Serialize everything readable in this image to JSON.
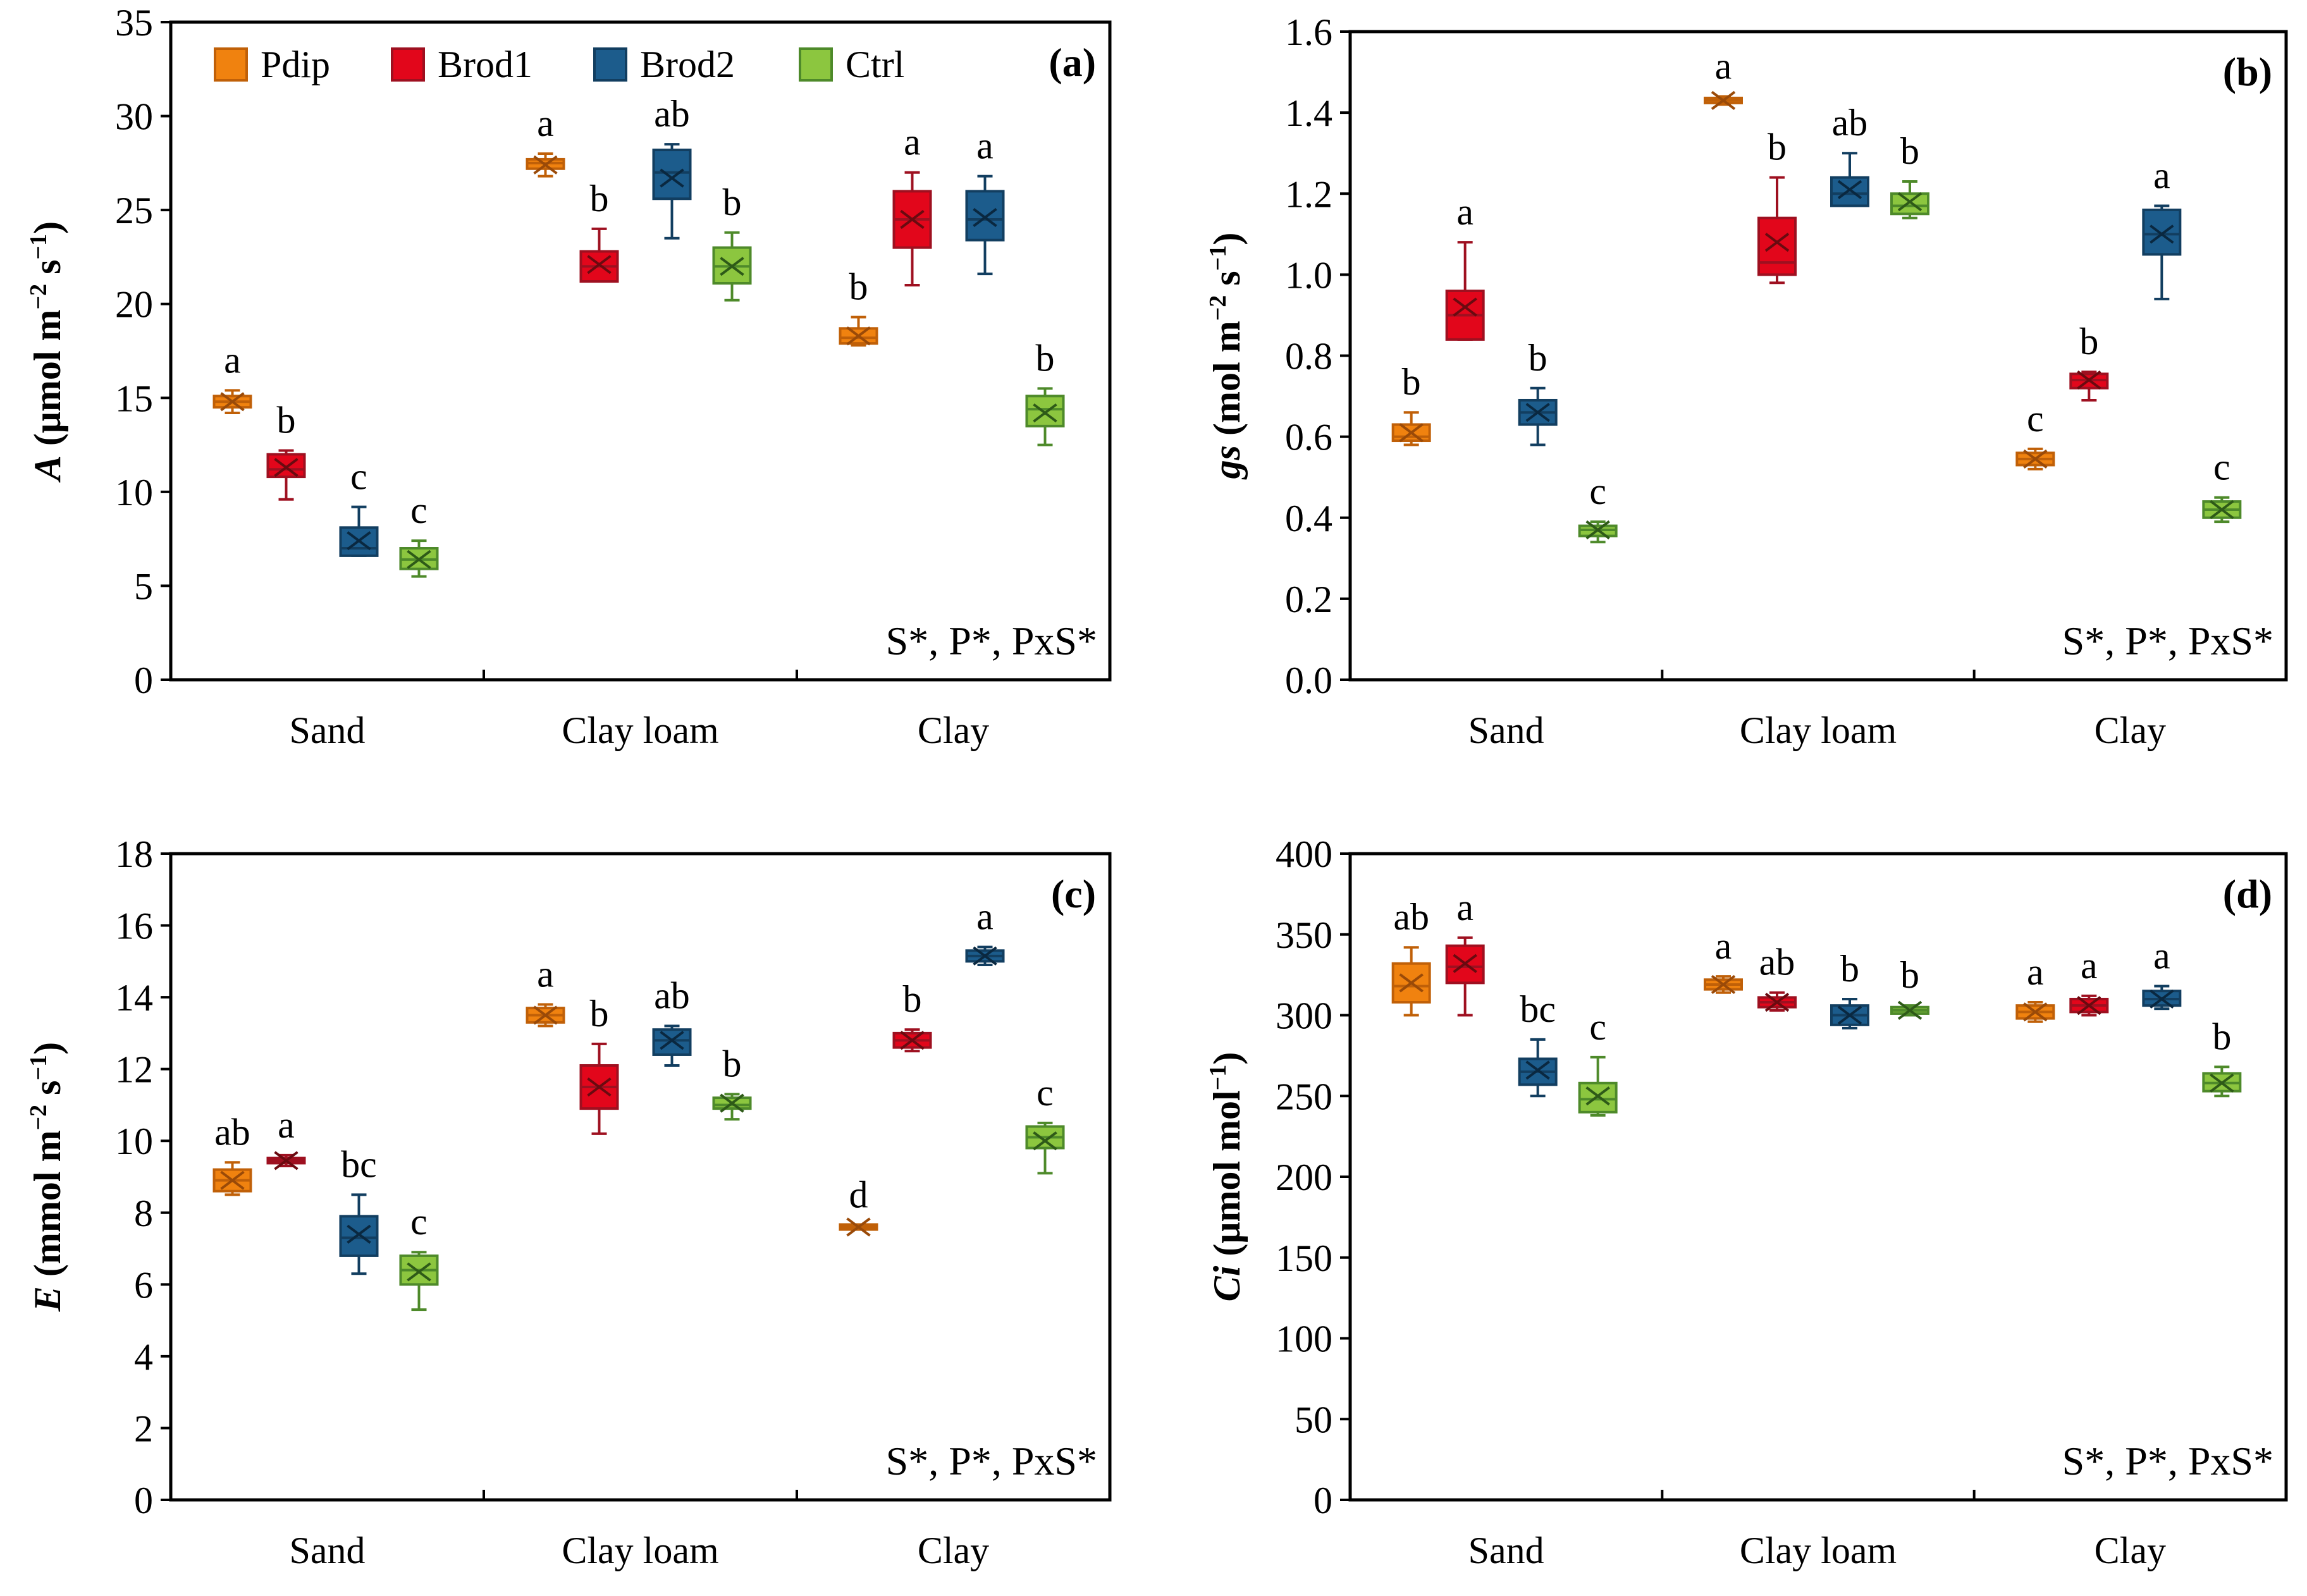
{
  "legend": [
    {
      "name": "Pdip",
      "fill": "#F0820F",
      "stroke": "#C06008",
      "xmark": "#9A4A08"
    },
    {
      "name": "Brod1",
      "fill": "#E2061B",
      "stroke": "#9E1020",
      "xmark": "#6A0A10"
    },
    {
      "name": "Brod2",
      "fill": "#1C5C8C",
      "stroke": "#123E60",
      "xmark": "#0A2840"
    },
    {
      "name": "Ctrl",
      "fill": "#8CC63F",
      "stroke": "#4E8A2A",
      "xmark": "#2E5A18"
    }
  ],
  "categories": [
    "Sand",
    "Clay loam",
    "Clay"
  ],
  "chart_data": [
    {
      "type": "box",
      "panel": "(a)",
      "ylabel_italic": "A",
      "ylabel_rest": " (μmol m",
      "ylabel_sup1": "−2",
      "ylabel_mid": " s",
      "ylabel_sup2": "−1",
      "ylabel_end": ")",
      "ylim": [
        0,
        35
      ],
      "yticks": [
        "0",
        "5",
        "10",
        "15",
        "20",
        "25",
        "30",
        "35"
      ],
      "stats": "S*, P*, PxS*",
      "series": [
        {
          "name": "Pdip",
          "boxes": [
            {
              "min": 14.2,
              "q1": 14.5,
              "med": 14.8,
              "q3": 15.1,
              "max": 15.4,
              "mean": 14.8,
              "letter": "a"
            },
            {
              "min": 26.8,
              "q1": 27.2,
              "med": 27.5,
              "q3": 27.7,
              "max": 28.0,
              "mean": 27.4,
              "letter": "a"
            },
            {
              "min": 17.8,
              "q1": 17.9,
              "med": 18.2,
              "q3": 18.7,
              "max": 19.3,
              "mean": 18.3,
              "letter": "b"
            }
          ]
        },
        {
          "name": "Brod1",
          "boxes": [
            {
              "min": 9.6,
              "q1": 10.8,
              "med": 11.2,
              "q3": 12.0,
              "max": 12.2,
              "mean": 11.3,
              "letter": "b"
            },
            {
              "min": 21.2,
              "q1": 21.2,
              "med": 22.0,
              "q3": 22.8,
              "max": 24.0,
              "mean": 22.1,
              "letter": "b"
            },
            {
              "min": 21.0,
              "q1": 23.0,
              "med": 24.5,
              "q3": 26.0,
              "max": 27.0,
              "mean": 24.5,
              "letter": "a"
            }
          ]
        },
        {
          "name": "Brod2",
          "boxes": [
            {
              "min": 6.6,
              "q1": 6.6,
              "med": 7.0,
              "q3": 8.1,
              "max": 9.2,
              "mean": 7.4,
              "letter": "c"
            },
            {
              "min": 23.5,
              "q1": 25.6,
              "med": 27.0,
              "q3": 28.2,
              "max": 28.5,
              "mean": 26.7,
              "letter": "ab"
            },
            {
              "min": 21.6,
              "q1": 23.4,
              "med": 24.5,
              "q3": 26.0,
              "max": 26.8,
              "mean": 24.6,
              "letter": "a"
            }
          ]
        },
        {
          "name": "Ctrl",
          "boxes": [
            {
              "min": 5.5,
              "q1": 5.9,
              "med": 6.4,
              "q3": 7.0,
              "max": 7.4,
              "mean": 6.4,
              "letter": "c"
            },
            {
              "min": 20.2,
              "q1": 21.1,
              "med": 22.0,
              "q3": 23.0,
              "max": 23.8,
              "mean": 22.0,
              "letter": "b"
            },
            {
              "min": 12.5,
              "q1": 13.5,
              "med": 14.4,
              "q3": 15.1,
              "max": 15.5,
              "mean": 14.2,
              "letter": "b"
            }
          ]
        }
      ]
    },
    {
      "type": "box",
      "panel": "(b)",
      "ylabel_italic": "gs",
      "ylabel_rest": " (mol m",
      "ylabel_sup1": "−2",
      "ylabel_mid": " s",
      "ylabel_sup2": "−1",
      "ylabel_end": ")",
      "ylim": [
        0,
        1.6
      ],
      "yticks": [
        "0.0",
        "0.2",
        "0.4",
        "0.6",
        "0.8",
        "1.0",
        "1.2",
        "1.4",
        "1.6"
      ],
      "stats": "S*, P*, PxS*",
      "series": [
        {
          "name": "Pdip",
          "boxes": [
            {
              "min": 0.58,
              "q1": 0.59,
              "med": 0.6,
              "q3": 0.63,
              "max": 0.66,
              "mean": 0.61,
              "letter": "b"
            },
            {
              "min": 1.42,
              "q1": 1.425,
              "med": 1.43,
              "q3": 1.435,
              "max": 1.44,
              "mean": 1.43,
              "letter": "a"
            },
            {
              "min": 0.52,
              "q1": 0.53,
              "med": 0.545,
              "q3": 0.56,
              "max": 0.57,
              "mean": 0.545,
              "letter": "c"
            }
          ]
        },
        {
          "name": "Brod1",
          "boxes": [
            {
              "min": 0.84,
              "q1": 0.84,
              "med": 0.9,
              "q3": 0.96,
              "max": 1.08,
              "mean": 0.92,
              "letter": "a"
            },
            {
              "min": 0.98,
              "q1": 1.0,
              "med": 1.03,
              "q3": 1.14,
              "max": 1.24,
              "mean": 1.08,
              "letter": "b"
            },
            {
              "min": 0.69,
              "q1": 0.72,
              "med": 0.74,
              "q3": 0.755,
              "max": 0.76,
              "mean": 0.74,
              "letter": "b"
            }
          ]
        },
        {
          "name": "Brod2",
          "boxes": [
            {
              "min": 0.58,
              "q1": 0.63,
              "med": 0.66,
              "q3": 0.69,
              "max": 0.72,
              "mean": 0.66,
              "letter": "b"
            },
            {
              "min": 1.17,
              "q1": 1.17,
              "med": 1.2,
              "q3": 1.24,
              "max": 1.3,
              "mean": 1.21,
              "letter": "ab"
            },
            {
              "min": 0.94,
              "q1": 1.05,
              "med": 1.1,
              "q3": 1.16,
              "max": 1.17,
              "mean": 1.1,
              "letter": "a"
            }
          ]
        },
        {
          "name": "Ctrl",
          "boxes": [
            {
              "min": 0.34,
              "q1": 0.355,
              "med": 0.37,
              "q3": 0.38,
              "max": 0.39,
              "mean": 0.37,
              "letter": "c"
            },
            {
              "min": 1.14,
              "q1": 1.15,
              "med": 1.17,
              "q3": 1.2,
              "max": 1.23,
              "mean": 1.18,
              "letter": "b"
            },
            {
              "min": 0.39,
              "q1": 0.4,
              "med": 0.42,
              "q3": 0.44,
              "max": 0.45,
              "mean": 0.42,
              "letter": "c"
            }
          ]
        }
      ]
    },
    {
      "type": "box",
      "panel": "(c)",
      "ylabel_italic": "E",
      "ylabel_rest": " (mmol m",
      "ylabel_sup1": "−2",
      "ylabel_mid": " s",
      "ylabel_sup2": "−1",
      "ylabel_end": ")",
      "ylim": [
        0,
        18
      ],
      "yticks": [
        "0",
        "2",
        "4",
        "6",
        "8",
        "10",
        "12",
        "14",
        "16",
        "18"
      ],
      "stats": "S*, P*, PxS*",
      "series": [
        {
          "name": "Pdip",
          "boxes": [
            {
              "min": 8.5,
              "q1": 8.6,
              "med": 8.9,
              "q3": 9.2,
              "max": 9.4,
              "mean": 8.9,
              "letter": "ab"
            },
            {
              "min": 13.2,
              "q1": 13.3,
              "med": 13.5,
              "q3": 13.7,
              "max": 13.8,
              "mean": 13.5,
              "letter": "a"
            },
            {
              "min": 7.55,
              "q1": 7.58,
              "med": 7.6,
              "q3": 7.62,
              "max": 7.65,
              "mean": 7.6,
              "letter": "d"
            }
          ]
        },
        {
          "name": "Brod1",
          "boxes": [
            {
              "min": 9.3,
              "q1": 9.4,
              "med": 9.45,
              "q3": 9.5,
              "max": 9.6,
              "mean": 9.45,
              "letter": "a"
            },
            {
              "min": 10.2,
              "q1": 10.9,
              "med": 11.5,
              "q3": 12.1,
              "max": 12.7,
              "mean": 11.5,
              "letter": "b"
            },
            {
              "min": 12.5,
              "q1": 12.6,
              "med": 12.8,
              "q3": 13.0,
              "max": 13.1,
              "mean": 12.8,
              "letter": "b"
            }
          ]
        },
        {
          "name": "Brod2",
          "boxes": [
            {
              "min": 6.3,
              "q1": 6.8,
              "med": 7.3,
              "q3": 7.9,
              "max": 8.5,
              "mean": 7.4,
              "letter": "bc"
            },
            {
              "min": 12.1,
              "q1": 12.4,
              "med": 12.8,
              "q3": 13.1,
              "max": 13.2,
              "mean": 12.8,
              "letter": "ab"
            },
            {
              "min": 14.9,
              "q1": 15.0,
              "med": 15.15,
              "q3": 15.3,
              "max": 15.4,
              "mean": 15.15,
              "letter": "a"
            }
          ]
        },
        {
          "name": "Ctrl",
          "boxes": [
            {
              "min": 5.3,
              "q1": 6.0,
              "med": 6.4,
              "q3": 6.8,
              "max": 6.9,
              "mean": 6.35,
              "letter": "c"
            },
            {
              "min": 10.6,
              "q1": 10.9,
              "med": 11.0,
              "q3": 11.2,
              "max": 11.3,
              "mean": 11.05,
              "letter": "b"
            },
            {
              "min": 9.1,
              "q1": 9.8,
              "med": 10.1,
              "q3": 10.4,
              "max": 10.5,
              "mean": 10.0,
              "letter": "c"
            }
          ]
        }
      ]
    },
    {
      "type": "box",
      "panel": "(d)",
      "ylabel_italic": "Ci",
      "ylabel_rest": " (μmol mol",
      "ylabel_sup1": "−1",
      "ylabel_mid": "",
      "ylabel_sup2": "",
      "ylabel_end": ")",
      "ylim": [
        0,
        400
      ],
      "yticks": [
        "0",
        "50",
        "100",
        "150",
        "200",
        "250",
        "300",
        "350",
        "400"
      ],
      "stats": "S*, P*, PxS*",
      "series": [
        {
          "name": "Pdip",
          "boxes": [
            {
              "min": 300,
              "q1": 308,
              "med": 318,
              "q3": 332,
              "max": 342,
              "mean": 320,
              "letter": "ab"
            },
            {
              "min": 314,
              "q1": 316,
              "med": 319,
              "q3": 322,
              "max": 324,
              "mean": 319,
              "letter": "a"
            },
            {
              "min": 296,
              "q1": 298,
              "med": 302,
              "q3": 306,
              "max": 308,
              "mean": 302,
              "letter": "a"
            }
          ]
        },
        {
          "name": "Brod1",
          "boxes": [
            {
              "min": 300,
              "q1": 320,
              "med": 330,
              "q3": 343,
              "max": 348,
              "mean": 332,
              "letter": "a"
            },
            {
              "min": 303,
              "q1": 305,
              "med": 308,
              "q3": 311,
              "max": 314,
              "mean": 308,
              "letter": "ab"
            },
            {
              "min": 300,
              "q1": 302,
              "med": 306,
              "q3": 310,
              "max": 312,
              "mean": 306,
              "letter": "a"
            }
          ]
        },
        {
          "name": "Brod2",
          "boxes": [
            {
              "min": 250,
              "q1": 257,
              "med": 265,
              "q3": 273,
              "max": 285,
              "mean": 266,
              "letter": "bc"
            },
            {
              "min": 292,
              "q1": 294,
              "med": 300,
              "q3": 306,
              "max": 310,
              "mean": 300,
              "letter": "b"
            },
            {
              "min": 304,
              "q1": 306,
              "med": 310,
              "q3": 315,
              "max": 318,
              "mean": 310,
              "letter": "a"
            }
          ]
        },
        {
          "name": "Ctrl",
          "boxes": [
            {
              "min": 238,
              "q1": 240,
              "med": 248,
              "q3": 258,
              "max": 274,
              "mean": 250,
              "letter": "c"
            },
            {
              "min": 300,
              "q1": 301,
              "med": 303,
              "q3": 305,
              "max": 306,
              "mean": 303,
              "letter": "b"
            },
            {
              "min": 250,
              "q1": 253,
              "med": 258,
              "q3": 264,
              "max": 268,
              "mean": 258,
              "letter": "b"
            }
          ]
        }
      ]
    }
  ]
}
